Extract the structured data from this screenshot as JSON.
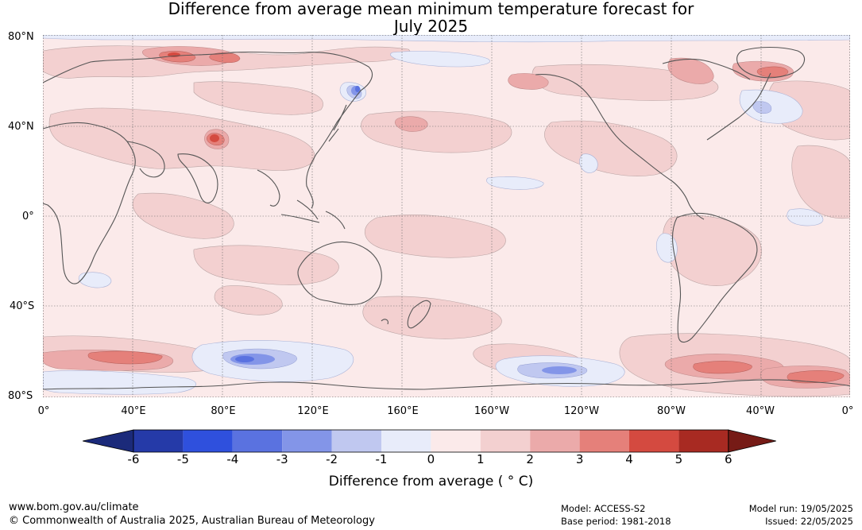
{
  "title": {
    "line1": "Difference from average mean minimum temperature forecast for",
    "line2": "July 2025"
  },
  "map": {
    "lat_labels": [
      "80°N",
      "40°N",
      "0°",
      "40°S",
      "80°S"
    ],
    "lon_labels": [
      "0°",
      "40°E",
      "80°E",
      "120°E",
      "160°E",
      "160°W",
      "120°W",
      "80°W",
      "40°W",
      "0°"
    ],
    "ocean_base_color": "#fbeaea",
    "anomaly_colors": {
      "pos_0_1": "#fbeaea",
      "pos_1_2": "#f3d0d0",
      "pos_2_3": "#ebaaaa",
      "pos_3_4": "#e5807a",
      "pos_4_5": "#d44a40",
      "neg_0_1": "#e8ecfa",
      "neg_1_2": "#c0c8f0",
      "neg_2_3": "#7f92e6",
      "neg_3_4": "#5a72e0"
    }
  },
  "colorbar": {
    "ticks": [
      "-6",
      "-5",
      "-4",
      "-3",
      "-2",
      "-1",
      "0",
      "1",
      "2",
      "3",
      "4",
      "5",
      "6"
    ],
    "colors": [
      "#253aa8",
      "#2f50dd",
      "#5a72e0",
      "#8395e8",
      "#c0c8f0",
      "#e8ecfa",
      "#fbeaea",
      "#f3d0d0",
      "#ebaaaa",
      "#e5807a",
      "#d44a40",
      "#a82a22"
    ],
    "low_extend_color": "#1b2a7a",
    "high_extend_color": "#761b16",
    "label": "Difference from average ( ° C)"
  },
  "footer": {
    "url": "www.bom.gov.au/climate",
    "copyright": "© Commonwealth of Australia 2025, Australian Bureau of Meteorology",
    "model": "Model: ACCESS-S2",
    "base_period": "Base period: 1981-2018",
    "model_run": "Model run: 19/05/2025",
    "issued": "Issued: 22/05/2025"
  }
}
